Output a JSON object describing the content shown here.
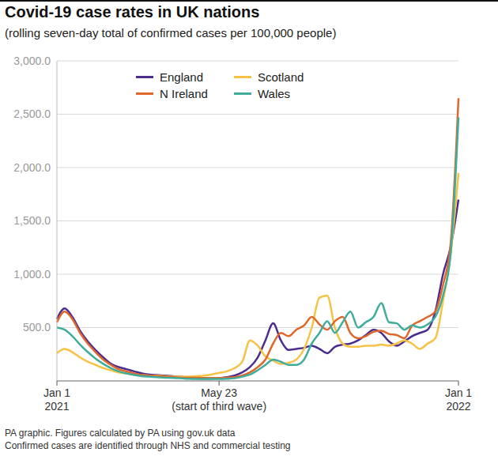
{
  "chart_data": {
    "type": "line",
    "title": "Covid-19 case rates in UK nations",
    "subtitle": "(rolling seven-day total of confirmed cases per 100,000 people)",
    "notes": [
      "PA graphic. Figures calculated by PA using gov.uk data",
      "Confirmed cases are identified through NHS and commercial testing"
    ],
    "categories": [
      "Jan 1\n2021",
      null,
      null,
      null,
      null,
      null,
      null,
      null,
      null,
      null,
      null,
      null,
      null,
      null,
      null,
      null,
      null,
      null,
      null,
      null,
      null,
      "May 23\n(start of third wave)",
      null,
      null,
      null,
      null,
      null,
      null,
      null,
      null,
      null,
      null,
      null,
      null,
      null,
      null,
      null,
      null,
      null,
      null,
      null,
      null,
      null,
      null,
      null,
      null,
      null,
      null,
      null,
      null,
      null,
      null,
      "Jan 1\n2022"
    ],
    "series": [
      {
        "name": "England",
        "color": "#4b2d8f",
        "values": [
          580,
          680,
          600,
          470,
          370,
          290,
          220,
          160,
          130,
          110,
          90,
          70,
          60,
          55,
          50,
          45,
          40,
          30,
          25,
          22,
          22,
          25,
          35,
          50,
          80,
          130,
          220,
          380,
          540,
          380,
          290,
          300,
          310,
          330,
          300,
          260,
          320,
          340,
          350,
          380,
          430,
          480,
          450,
          370,
          330,
          370,
          420,
          450,
          480,
          650,
          1000,
          1260,
          1700
        ]
      },
      {
        "name": "Scotland",
        "color": "#f6c244",
        "values": [
          260,
          300,
          270,
          220,
          180,
          150,
          120,
          100,
          80,
          70,
          60,
          55,
          50,
          50,
          45,
          40,
          40,
          40,
          45,
          50,
          60,
          75,
          90,
          120,
          180,
          380,
          330,
          230,
          190,
          160,
          170,
          200,
          300,
          500,
          780,
          800,
          500,
          350,
          320,
          320,
          330,
          330,
          340,
          330,
          350,
          380,
          350,
          300,
          350,
          400,
          750,
          1200,
          1950
        ]
      },
      {
        "name": "N Ireland",
        "color": "#e0672a",
        "values": [
          550,
          650,
          580,
          450,
          350,
          270,
          200,
          150,
          110,
          90,
          70,
          55,
          50,
          45,
          40,
          35,
          30,
          30,
          30,
          28,
          28,
          28,
          30,
          35,
          50,
          80,
          130,
          200,
          350,
          450,
          420,
          480,
          520,
          600,
          530,
          480,
          560,
          600,
          450,
          400,
          420,
          460,
          470,
          440,
          430,
          400,
          520,
          560,
          600,
          650,
          900,
          1300,
          2650
        ]
      },
      {
        "name": "Wales",
        "color": "#3fac9c",
        "values": [
          500,
          480,
          420,
          340,
          270,
          210,
          160,
          120,
          90,
          70,
          55,
          45,
          40,
          35,
          30,
          28,
          25,
          20,
          18,
          18,
          18,
          18,
          20,
          25,
          40,
          60,
          100,
          150,
          200,
          180,
          150,
          150,
          200,
          350,
          450,
          560,
          450,
          550,
          650,
          500,
          550,
          600,
          730,
          550,
          540,
          480,
          520,
          500,
          530,
          600,
          800,
          1200,
          2470
        ]
      }
    ],
    "ylim": [
      0,
      3000
    ],
    "yticks": [
      {
        "value": 500,
        "label": "500.0"
      },
      {
        "value": 1000,
        "label": "1,000.0"
      },
      {
        "value": 1500,
        "label": "1,500.0"
      },
      {
        "value": 2000,
        "label": "2,000.0"
      },
      {
        "value": 2500,
        "label": "2,500.0"
      },
      {
        "value": 3000,
        "label": "3,000.0"
      }
    ],
    "grid": true,
    "legend": "top"
  }
}
